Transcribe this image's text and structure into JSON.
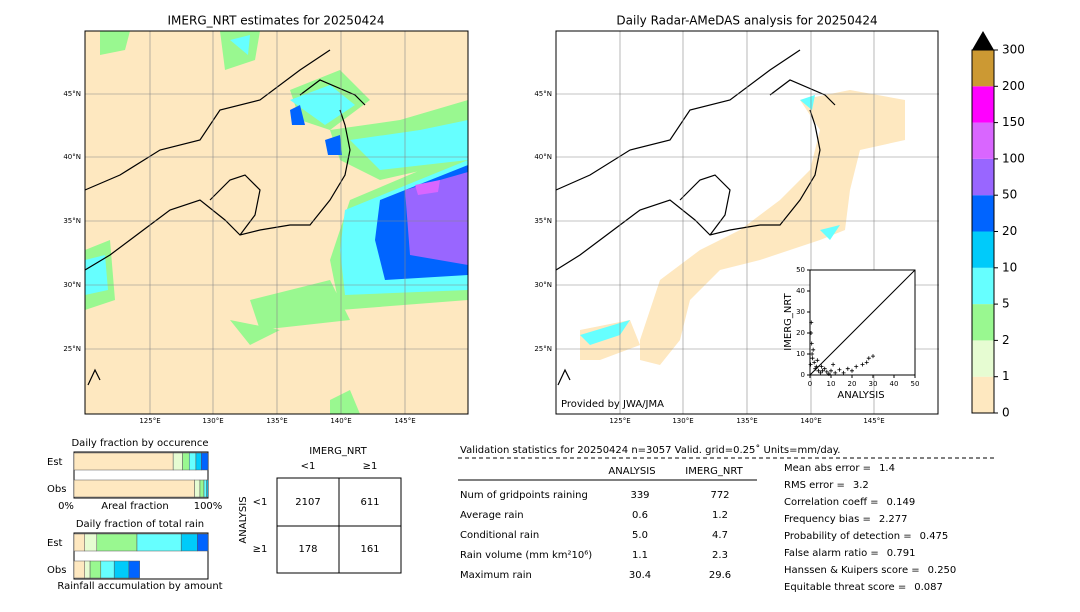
{
  "left_map": {
    "title": "IMERG_NRT estimates for 20250424",
    "lat_labels": [
      "45°N",
      "40°N",
      "35°N",
      "30°N",
      "25°N"
    ],
    "lon_labels": [
      "125°E",
      "130°E",
      "135°E",
      "140°E",
      "145°E"
    ]
  },
  "right_map": {
    "title": "Daily Radar-AMeDAS analysis for 20250424",
    "lat_labels": [
      "45°N",
      "40°N",
      "35°N",
      "30°N",
      "25°N"
    ],
    "lon_labels": [
      "125°E",
      "130°E",
      "135°E",
      "140°E",
      "145°E"
    ],
    "credit": "Provided by JWA/JMA"
  },
  "inset": {
    "type": "scatter",
    "xlabel": "ANALYSIS",
    "ylabel": "IMERG_NRT",
    "xlim": [
      0,
      50
    ],
    "ylim": [
      0,
      50
    ],
    "xticks": [
      0,
      10,
      20,
      30,
      40,
      50
    ],
    "yticks": [
      0,
      10,
      20,
      30,
      40,
      50
    ],
    "x": [
      0.5,
      0.8,
      1,
      1.2,
      0.3,
      2,
      2.5,
      3,
      4,
      5,
      6,
      7,
      8,
      9,
      10,
      12,
      14,
      16,
      18,
      20,
      22,
      25,
      27,
      28,
      30,
      1.5,
      0.6,
      3.5,
      5.5,
      11
    ],
    "y": [
      20,
      15,
      10,
      8,
      5,
      6,
      3,
      4,
      2,
      1,
      2,
      3,
      1.5,
      0.5,
      2,
      1,
      2.5,
      1,
      3,
      2,
      4,
      5,
      6,
      8,
      9,
      12,
      25,
      7,
      4,
      5
    ]
  },
  "colorbar": {
    "ticks": [
      0,
      1,
      2,
      5,
      10,
      20,
      50,
      100,
      150,
      200,
      300
    ],
    "colors": [
      "#fee8c0",
      "#e6fcd2",
      "#99f890",
      "#66ffff",
      "#00cbfa",
      "#0064ff",
      "#9966ff",
      "#d966ff",
      "#ff00ff",
      "#cc9933"
    ]
  },
  "occurrence": {
    "title": "Daily fraction by occurence",
    "rows": [
      "Est",
      "Obs"
    ],
    "xlabels": [
      "0%",
      "Areal fraction",
      "100%"
    ],
    "est": [
      74,
      7,
      5,
      5,
      4,
      5
    ],
    "obs": [
      90,
      4,
      3,
      2,
      1
    ],
    "colors": [
      "#fee8c0",
      "#e6fcd2",
      "#99f890",
      "#66ffff",
      "#00cbfa",
      "#0064ff"
    ]
  },
  "total_rain": {
    "title": "Daily fraction of total rain",
    "rows": [
      "Est",
      "Obs"
    ],
    "xlabel": "Rainfall accumulation by amount",
    "est": [
      8,
      9,
      30,
      33,
      12,
      8
    ],
    "obs": [
      8,
      4,
      8,
      10,
      11,
      8
    ],
    "colors": [
      "#fee8c0",
      "#e6fcd2",
      "#99f890",
      "#66ffff",
      "#00cbfa",
      "#0064ff"
    ]
  },
  "contingency": {
    "title": "IMERG_NRT",
    "cols": [
      "<1",
      "≥1"
    ],
    "ylabel": "ANALYSIS",
    "rows": [
      "<1",
      "≥1"
    ],
    "cells": [
      [
        "2107",
        "611"
      ],
      [
        "178",
        "161"
      ]
    ]
  },
  "stats": {
    "header": "Validation statistics for 20250424  n=3057 Valid. grid=0.25˚ Units=mm/day.",
    "columns": [
      "ANALYSIS",
      "IMERG_NRT"
    ],
    "rows": [
      {
        "label": "Num of gridpoints raining",
        "values": [
          "339",
          "772"
        ]
      },
      {
        "label": "Average rain",
        "values": [
          "0.6",
          "1.2"
        ]
      },
      {
        "label": "Conditional rain",
        "values": [
          "5.0",
          "4.7"
        ]
      },
      {
        "label": "Rain volume (mm km²10⁶)",
        "values": [
          "1.1",
          "2.3"
        ]
      },
      {
        "label": "Maximum rain",
        "values": [
          "30.4",
          "29.6"
        ]
      }
    ],
    "scores": [
      {
        "label": "Mean abs error =",
        "value": "1.4"
      },
      {
        "label": "RMS error =",
        "value": "3.2"
      },
      {
        "label": "Correlation coeff =",
        "value": "0.149"
      },
      {
        "label": "Frequency bias =",
        "value": "2.277"
      },
      {
        "label": "Probability of detection =",
        "value": "0.475"
      },
      {
        "label": "False alarm ratio =",
        "value": "0.791"
      },
      {
        "label": "Hanssen & Kuipers score =",
        "value": "0.250"
      },
      {
        "label": "Equitable threat score =",
        "value": "0.087"
      }
    ]
  }
}
